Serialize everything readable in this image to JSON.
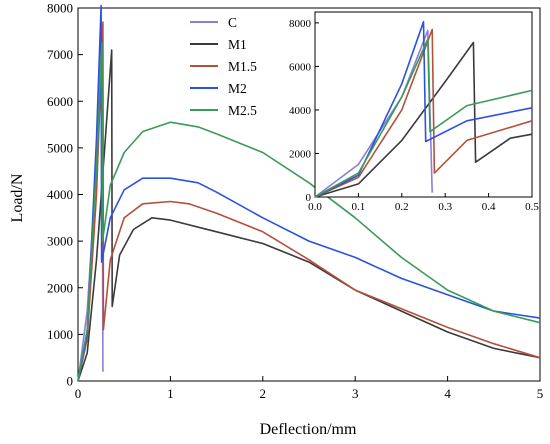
{
  "chart_data": {
    "type": "line",
    "xlabel": "Deflection/mm",
    "ylabel": "Load/N",
    "xlim": [
      0,
      5
    ],
    "ylim": [
      0,
      8000
    ],
    "xticks": [
      "0",
      "1",
      "2",
      "3",
      "4",
      "5"
    ],
    "yticks": [
      "0",
      "1000",
      "2000",
      "3000",
      "4000",
      "5000",
      "6000",
      "7000",
      "8000"
    ],
    "grid": false,
    "legend": "top-center",
    "series": [
      {
        "name": "C",
        "color": "#8a7fd8",
        "points": [
          [
            0,
            0
          ],
          [
            0.1,
            1500
          ],
          [
            0.2,
            4600
          ],
          [
            0.26,
            7650
          ],
          [
            0.27,
            200
          ]
        ]
      },
      {
        "name": "M1",
        "color": "#3a3a3a",
        "points": [
          [
            0,
            0
          ],
          [
            0.1,
            600
          ],
          [
            0.2,
            2600
          ],
          [
            0.3,
            5300
          ],
          [
            0.365,
            7100
          ],
          [
            0.37,
            1600
          ],
          [
            0.45,
            2700
          ],
          [
            0.6,
            3250
          ],
          [
            0.8,
            3500
          ],
          [
            1.0,
            3450
          ],
          [
            1.5,
            3200
          ],
          [
            2.0,
            2950
          ],
          [
            2.5,
            2550
          ],
          [
            3.0,
            1950
          ],
          [
            3.5,
            1500
          ],
          [
            4.0,
            1050
          ],
          [
            4.5,
            700
          ],
          [
            5.0,
            500
          ]
        ]
      },
      {
        "name": "M1.5",
        "color": "#b5503a",
        "points": [
          [
            0,
            0
          ],
          [
            0.1,
            900
          ],
          [
            0.2,
            4000
          ],
          [
            0.27,
            7700
          ],
          [
            0.275,
            1100
          ],
          [
            0.35,
            2600
          ],
          [
            0.5,
            3500
          ],
          [
            0.7,
            3800
          ],
          [
            1.0,
            3850
          ],
          [
            1.2,
            3800
          ],
          [
            1.5,
            3600
          ],
          [
            2.0,
            3200
          ],
          [
            2.5,
            2600
          ],
          [
            3.0,
            1950
          ],
          [
            3.5,
            1550
          ],
          [
            4.0,
            1150
          ],
          [
            4.5,
            800
          ],
          [
            5.0,
            500
          ]
        ]
      },
      {
        "name": "M2",
        "color": "#2a52e0",
        "points": [
          [
            0,
            0
          ],
          [
            0.1,
            1000
          ],
          [
            0.2,
            5200
          ],
          [
            0.25,
            8050
          ],
          [
            0.255,
            2550
          ],
          [
            0.35,
            3500
          ],
          [
            0.5,
            4100
          ],
          [
            0.7,
            4350
          ],
          [
            1.0,
            4350
          ],
          [
            1.3,
            4250
          ],
          [
            1.5,
            4050
          ],
          [
            2.0,
            3500
          ],
          [
            2.5,
            3000
          ],
          [
            3.0,
            2650
          ],
          [
            3.5,
            2200
          ],
          [
            4.0,
            1850
          ],
          [
            4.5,
            1500
          ],
          [
            5.0,
            1350
          ]
        ]
      },
      {
        "name": "M2.5",
        "color": "#3a9a5a",
        "points": [
          [
            0,
            0
          ],
          [
            0.1,
            1100
          ],
          [
            0.2,
            4600
          ],
          [
            0.26,
            7250
          ],
          [
            0.265,
            3000
          ],
          [
            0.35,
            4200
          ],
          [
            0.5,
            4900
          ],
          [
            0.7,
            5350
          ],
          [
            1.0,
            5550
          ],
          [
            1.3,
            5450
          ],
          [
            1.5,
            5300
          ],
          [
            2.0,
            4900
          ],
          [
            2.5,
            4250
          ],
          [
            3.0,
            3500
          ],
          [
            3.5,
            2650
          ],
          [
            4.0,
            1950
          ],
          [
            4.5,
            1500
          ],
          [
            5.0,
            1250
          ]
        ]
      }
    ],
    "inset": {
      "xlim": [
        0,
        0.5
      ],
      "ylim": [
        0,
        8500
      ],
      "xticks": [
        "0.0",
        "0.1",
        "0.2",
        "0.3",
        "0.4",
        "0.5"
      ],
      "yticks": [
        "0",
        "2000",
        "4000",
        "6000",
        "8000"
      ]
    }
  }
}
